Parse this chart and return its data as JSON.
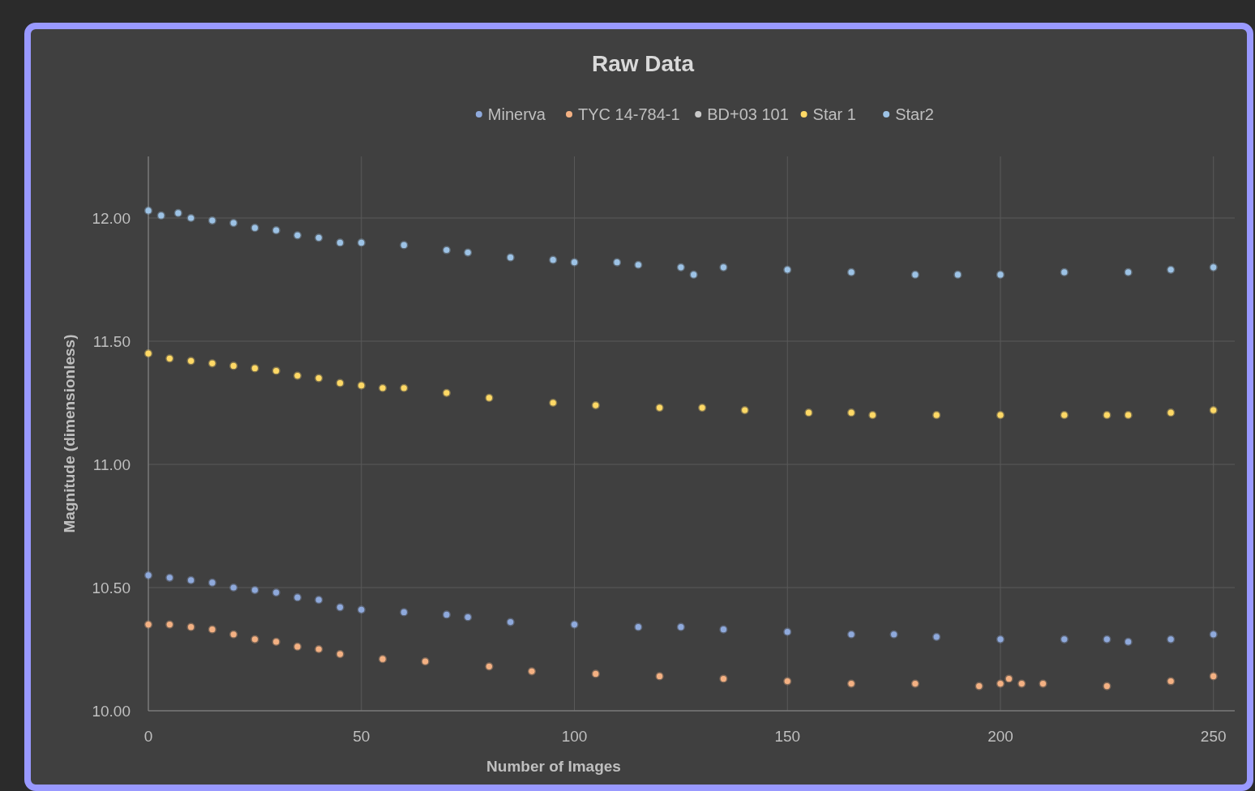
{
  "chart_data": {
    "type": "scatter",
    "title": "Raw Data",
    "xlabel": "Number of Images",
    "ylabel": "Magnitude (dimensionless)",
    "xlim": [
      0,
      255
    ],
    "xticks": [
      0,
      50,
      100,
      150,
      200,
      250
    ],
    "ylim": [
      10,
      12.25
    ],
    "yticks": [
      {
        "value": 10,
        "label": "10.00"
      },
      {
        "value": 10.5,
        "label": "10.50"
      },
      {
        "value": 11,
        "label": "11.00"
      },
      {
        "value": 11.5,
        "label": "11.50"
      },
      {
        "value": 12,
        "label": "12.00"
      }
    ],
    "grid": true,
    "legend": "top",
    "marker": "circle",
    "series": [
      {
        "name": "Minerva",
        "color": "#8faadc",
        "x": [
          0,
          5,
          10,
          15,
          20,
          25,
          30,
          35,
          40,
          45,
          50,
          60,
          70,
          75,
          85,
          100,
          115,
          125,
          135,
          150,
          165,
          175,
          185,
          200,
          215,
          225,
          230,
          240,
          250
        ],
        "values": [
          10.55,
          10.54,
          10.53,
          10.52,
          10.5,
          10.49,
          10.48,
          10.46,
          10.45,
          10.42,
          10.41,
          10.4,
          10.39,
          10.38,
          10.36,
          10.35,
          10.34,
          10.34,
          10.33,
          10.32,
          10.31,
          10.31,
          10.3,
          10.29,
          10.29,
          10.29,
          10.28,
          10.29,
          10.31
        ]
      },
      {
        "name": "TYC 14-784-1",
        "color": "#f4b183",
        "x": [
          0,
          5,
          10,
          15,
          20,
          25,
          30,
          35,
          40,
          45,
          55,
          65,
          80,
          90,
          105,
          120,
          135,
          150,
          165,
          180,
          195,
          200,
          202,
          205,
          210,
          225,
          240,
          250
        ],
        "values": [
          10.35,
          10.35,
          10.34,
          10.33,
          10.31,
          10.29,
          10.28,
          10.26,
          10.25,
          10.23,
          10.21,
          10.2,
          10.18,
          10.16,
          10.15,
          10.14,
          10.13,
          10.12,
          10.11,
          10.11,
          10.1,
          10.11,
          10.13,
          10.11,
          10.11,
          10.1,
          10.12,
          10.14
        ]
      },
      {
        "name": "BD+03 101",
        "color": "#c9c9c9"
      },
      {
        "name": "Star 1",
        "color": "#ffd966",
        "x": [
          0,
          5,
          10,
          15,
          20,
          25,
          30,
          35,
          40,
          45,
          50,
          55,
          60,
          70,
          80,
          95,
          105,
          120,
          130,
          140,
          155,
          165,
          170,
          185,
          200,
          215,
          225,
          230,
          240,
          250
        ],
        "values": [
          11.45,
          11.43,
          11.42,
          11.41,
          11.4,
          11.39,
          11.38,
          11.36,
          11.35,
          11.33,
          11.32,
          11.31,
          11.31,
          11.29,
          11.27,
          11.25,
          11.24,
          11.23,
          11.23,
          11.22,
          11.21,
          11.21,
          11.2,
          11.2,
          11.2,
          11.2,
          11.2,
          11.2,
          11.21,
          11.22
        ]
      },
      {
        "name": "Star2",
        "color": "#9dc3e6",
        "x": [
          0,
          3,
          7,
          10,
          15,
          20,
          25,
          30,
          35,
          40,
          45,
          50,
          60,
          70,
          75,
          85,
          95,
          100,
          110,
          115,
          125,
          128,
          135,
          150,
          165,
          180,
          190,
          200,
          215,
          230,
          240,
          250
        ],
        "values": [
          12.03,
          12.01,
          12.02,
          12.0,
          11.99,
          11.98,
          11.96,
          11.95,
          11.93,
          11.92,
          11.9,
          11.9,
          11.89,
          11.87,
          11.86,
          11.84,
          11.83,
          11.82,
          11.82,
          11.81,
          11.8,
          11.77,
          11.8,
          11.79,
          11.78,
          11.77,
          11.77,
          11.77,
          11.78,
          11.78,
          11.79,
          11.8
        ]
      }
    ]
  }
}
